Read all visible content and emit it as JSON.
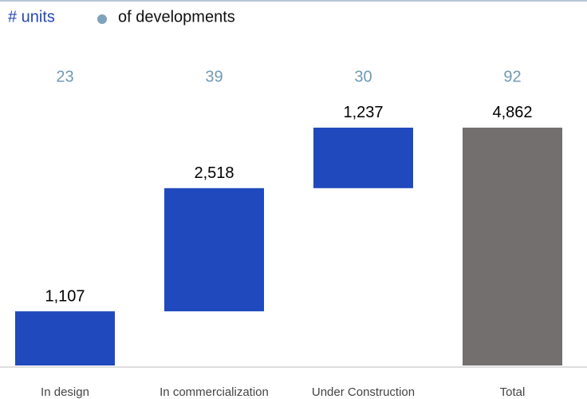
{
  "chart_data": {
    "type": "waterfall",
    "legend": [
      "# units",
      "of developments"
    ],
    "legend_colors": [
      "#2448b5",
      "#7fa3bd"
    ],
    "categories": [
      "In design",
      "In commercialization",
      "Under Construction",
      "Total"
    ],
    "values": [
      1107,
      2518,
      1237,
      4862
    ],
    "value_labels": [
      "1,107",
      "2,518",
      "1,237",
      "4,862"
    ],
    "measure": [
      "relative",
      "relative",
      "relative",
      "total"
    ],
    "developments": [
      23,
      39,
      30,
      92
    ],
    "color": "#1f49bd",
    "total_color": "#736f6e",
    "developments_color": "#6f9ab5",
    "ylim": [
      0,
      5000
    ]
  }
}
